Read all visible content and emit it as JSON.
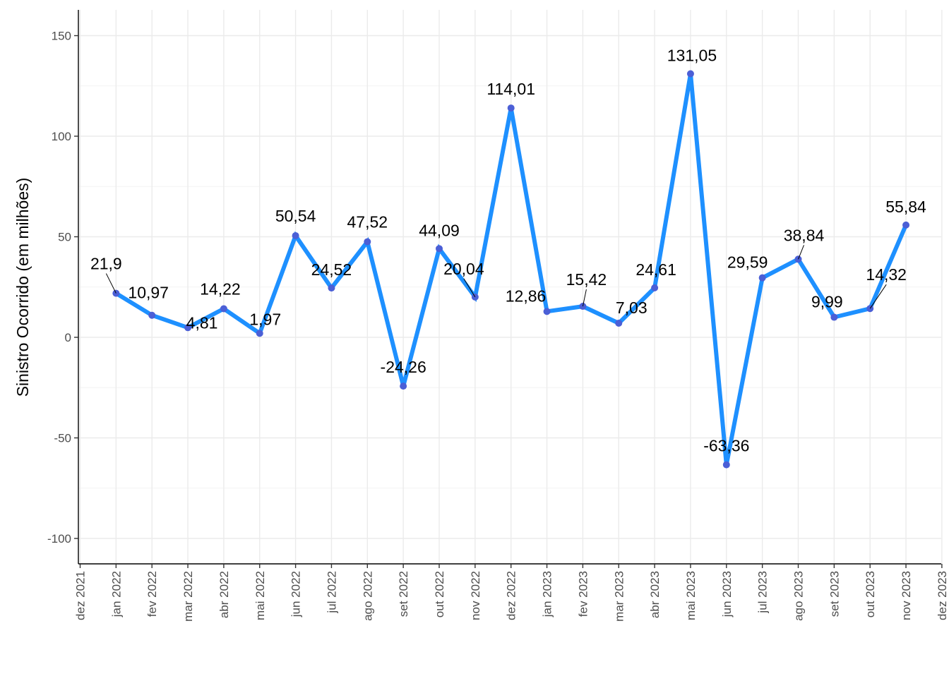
{
  "chart_data": {
    "type": "line",
    "xlabel": "",
    "ylabel": "Sinistro Ocorrido (em milhões)",
    "ylim": [
      -110,
      160
    ],
    "yticks": [
      -100,
      -50,
      0,
      50,
      100,
      150
    ],
    "xtick_labels": [
      "dez 2021",
      "jan 2022",
      "fev 2022",
      "mar 2022",
      "abr 2022",
      "mai 2022",
      "jun 2022",
      "jul 2022",
      "ago 2022",
      "set 2022",
      "out 2022",
      "nov 2022",
      "dez 2022",
      "jan 2023",
      "fev 2023",
      "mar 2023",
      "abr 2023",
      "mai 2023",
      "jun 2023",
      "jul 2023",
      "ago 2023",
      "set 2023",
      "out 2023",
      "nov 2023",
      "dez 2023"
    ],
    "categories": [
      "jan 2022",
      "fev 2022",
      "mar 2022",
      "abr 2022",
      "mai 2022",
      "jun 2022",
      "jul 2022",
      "ago 2022",
      "set 2022",
      "out 2022",
      "nov 2022",
      "dez 2022",
      "jan 2023",
      "fev 2023",
      "mar 2023",
      "abr 2023",
      "mai 2023",
      "jun 2023",
      "jul 2023",
      "ago 2023",
      "set 2023",
      "out 2023",
      "nov 2023"
    ],
    "values": [
      21.9,
      10.97,
      4.81,
      14.22,
      1.97,
      50.54,
      24.52,
      47.52,
      -24.26,
      44.09,
      20.04,
      114.01,
      12.86,
      15.42,
      7.03,
      24.61,
      131.05,
      -63.36,
      29.59,
      38.84,
      9.99,
      14.32,
      55.84
    ],
    "labels": [
      "21,9",
      "10,97",
      "4,81",
      "14,22",
      "1,97",
      "50,54",
      "24,52",
      "47,52",
      "-24,26",
      "44,09",
      "20,04",
      "114,01",
      "12,86",
      "15,42",
      "7,03",
      "24,61",
      "131,05",
      "-63,36",
      "29,59",
      "38,84",
      "9,99",
      "14,32",
      "55,84"
    ],
    "line_color": "#1E90FF",
    "point_color": "#4B5FD6",
    "grid": true,
    "legend": "none"
  }
}
